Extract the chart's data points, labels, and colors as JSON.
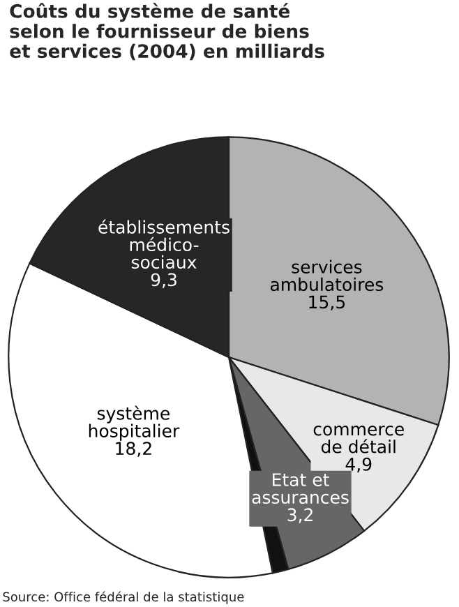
{
  "chart_data": {
    "type": "pie",
    "title": "Coûts du système de santé\nselon le fournisseur de biens\net services (2004) en milliards",
    "categories": [
      "services\nambulatoires",
      "commerce\nde détail",
      "Etat et\nassurances",
      null,
      "système\nhospitalier",
      "établissements\nmédico-\nsociaux"
    ],
    "values": [
      15.5,
      4.9,
      3.2,
      0.6,
      18.2,
      9.3
    ],
    "value_labels": [
      "15,5",
      "4,9",
      "3,2",
      null,
      "18,2",
      "9,3"
    ],
    "colors": [
      "#b3b3b3",
      "#e8e8e8",
      "#666666",
      "#111111",
      "#ffffff",
      "#262626"
    ],
    "annotations": [
      "Source: Office fédéral de la statistique"
    ],
    "legend": false
  }
}
